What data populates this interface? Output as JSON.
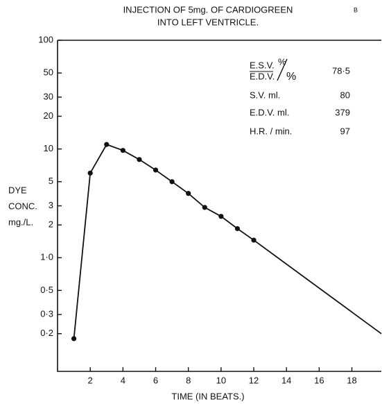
{
  "chart_data": {
    "type": "line",
    "title": "INJECTION OF 5mg. OF CARDIOGREEN",
    "subtitle": "INTO LEFT VENTRICLE.",
    "panel_label": "B",
    "x_label": "TIME (IN BEATS.)",
    "y_label": [
      "DYE",
      "CONC.",
      "mg./L."
    ],
    "log_y": true,
    "xlim": [
      0,
      19.8
    ],
    "ylim": [
      0.09,
      100
    ],
    "xticks": [
      2,
      4,
      6,
      8,
      10,
      12,
      14,
      16,
      18
    ],
    "yticks": [
      100,
      50,
      30,
      20,
      10,
      5,
      3,
      2,
      {
        "value": 1,
        "label": "1·0"
      },
      {
        "value": 0.5,
        "label": "0·5"
      },
      {
        "value": 0.3,
        "label": "0·3"
      },
      {
        "value": 0.2,
        "label": "0·2"
      }
    ],
    "series": [
      {
        "color": "#111111",
        "markers": true,
        "x": [
          1,
          2,
          3,
          4,
          5,
          6,
          7,
          8,
          9,
          10,
          11,
          12
        ],
        "values": [
          0.18,
          6,
          11,
          9.7,
          8,
          6.4,
          5,
          3.9,
          2.9,
          2.4,
          1.85,
          1.45
        ]
      },
      {
        "color": "#111111",
        "markers": false,
        "x": [
          12,
          19.8
        ],
        "values": [
          1.45,
          0.2
        ]
      }
    ],
    "table": {
      "fraction": {
        "numerator": "E.S.V.",
        "denominator": "E.D.V.",
        "unit_top": "%",
        "unit_bottom": "%",
        "value": "78·5"
      },
      "rows": [
        {
          "label": "S.V. ml.",
          "value": "80"
        },
        {
          "label": "E.D.V. ml.",
          "value": "379"
        },
        {
          "label": "H.R. / min.",
          "value": "97"
        }
      ]
    }
  }
}
